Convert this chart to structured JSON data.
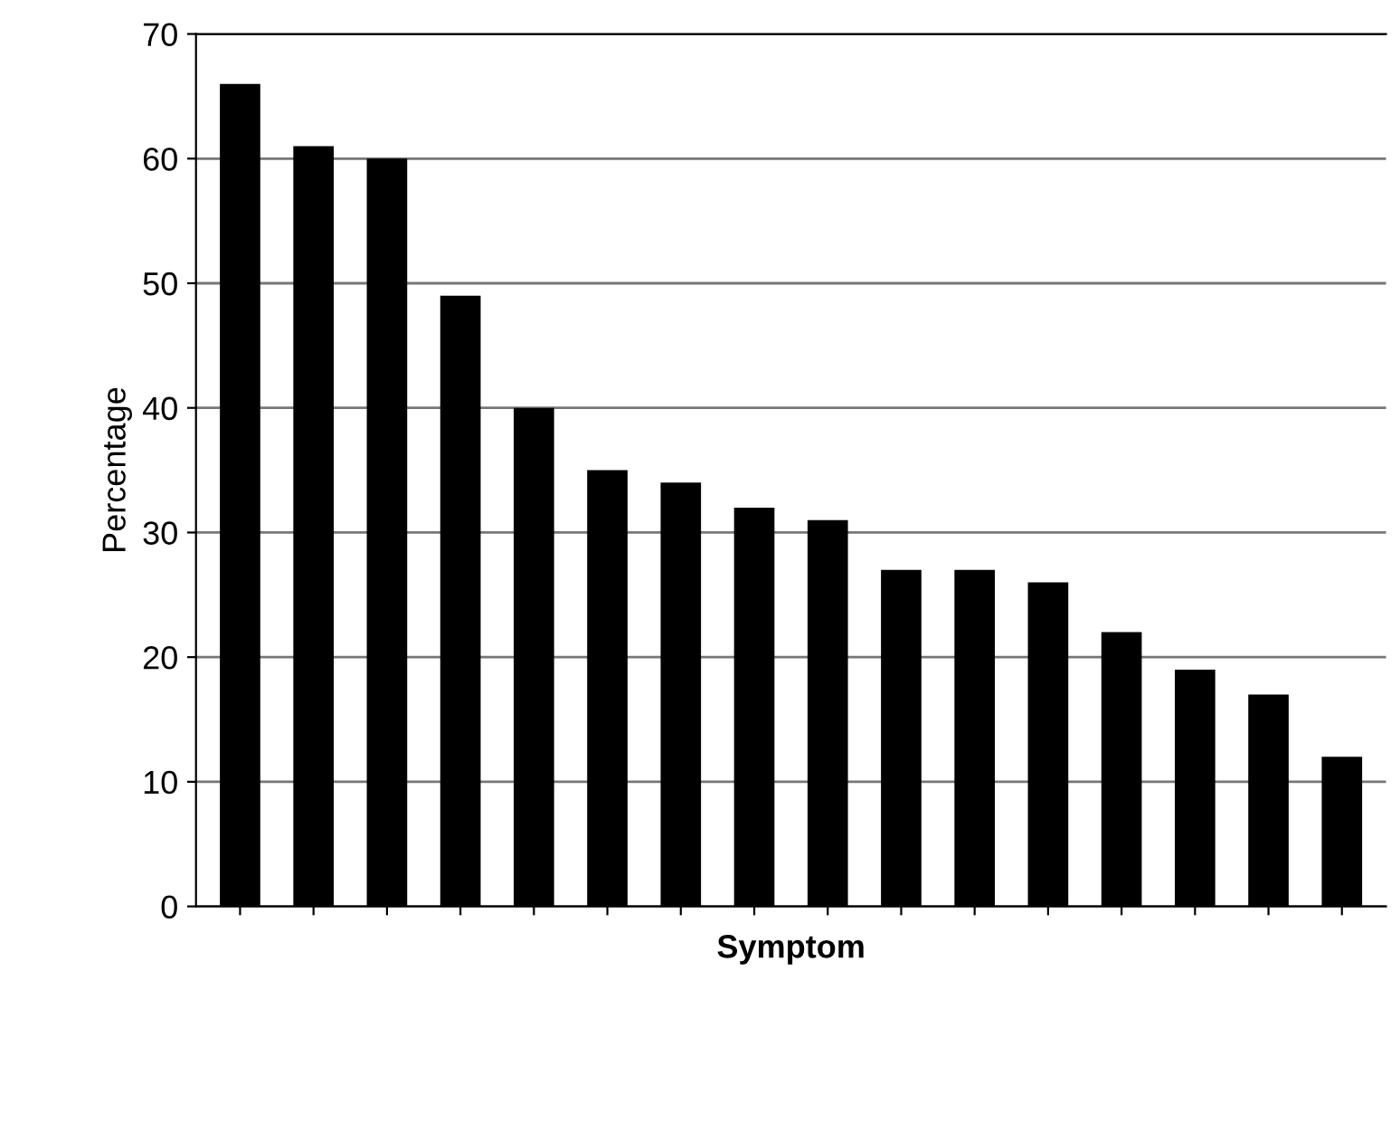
{
  "chart_data": {
    "type": "bar",
    "xlabel": "Symptom",
    "ylabel": "Percentage",
    "categories": [
      null,
      null,
      null,
      null,
      null,
      null,
      null,
      null,
      null,
      null,
      null,
      null,
      null,
      null,
      null,
      null
    ],
    "values": [
      66,
      61,
      60,
      49,
      40,
      35,
      34,
      32,
      31,
      27,
      27,
      26,
      22,
      19,
      17,
      12
    ],
    "color": "#000000",
    "ylim": [
      0,
      70
    ],
    "yticks": [
      0,
      10,
      20,
      30,
      40,
      50,
      60,
      70
    ],
    "grid": "y"
  }
}
